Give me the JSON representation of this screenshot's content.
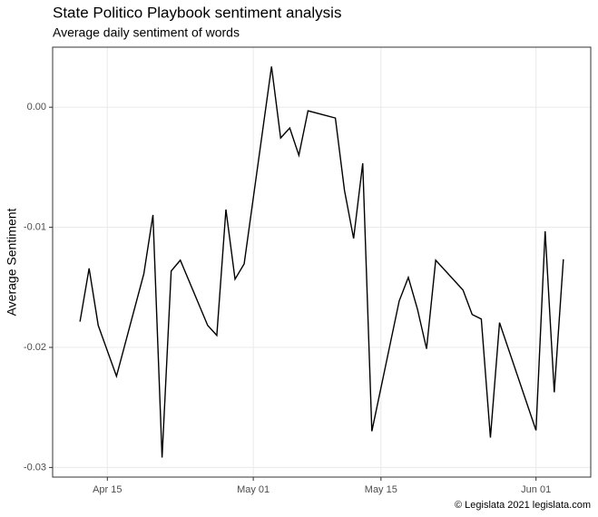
{
  "chart_data": {
    "type": "line",
    "title": "State Politico Playbook sentiment analysis",
    "subtitle": "Average daily sentiment of words",
    "y_label": "Average Sentiment",
    "caption": "© Legislata 2021 legislata.com",
    "x": [
      "Apr 12",
      "Apr 13",
      "Apr 14",
      "Apr 16",
      "Apr 19",
      "Apr 20",
      "Apr 21",
      "Apr 22",
      "Apr 23",
      "Apr 26",
      "Apr 27",
      "Apr 28",
      "Apr 29",
      "Apr 30",
      "May 03",
      "May 04",
      "May 05",
      "May 06",
      "May 07",
      "May 10",
      "May 11",
      "May 12",
      "May 13",
      "May 14",
      "May 17",
      "May 18",
      "May 19",
      "May 20",
      "May 21",
      "May 24",
      "May 25",
      "May 26",
      "May 27",
      "May 28",
      "Jun 01",
      "Jun 02",
      "Jun 03",
      "Jun 04"
    ],
    "series": [
      {
        "name": "Average Sentiment",
        "color": "#000000",
        "values": [
          -0.01786,
          -0.01342,
          -0.01817,
          -0.0224,
          -0.01387,
          -0.00897,
          -0.02917,
          -0.01364,
          -0.01274,
          -0.01817,
          -0.019,
          -0.00852,
          -0.01432,
          -0.01304,
          0.00339,
          -0.00256,
          -0.00173,
          -0.004,
          -0.0003,
          -0.0009,
          -0.00693,
          -0.01093,
          -0.00467,
          -0.02698,
          -0.01613,
          -0.01417,
          -0.01681,
          -0.02012,
          -0.01274,
          -0.01523,
          -0.01726,
          -0.01764,
          -0.02751,
          -0.01794,
          -0.02691,
          -0.01033,
          -0.02374,
          -0.01266
        ]
      }
    ],
    "xlim": [
      "Apr 09",
      "Jun 07"
    ],
    "xticks": [
      "Apr 15",
      "May 01",
      "May 15",
      "Jun 01"
    ],
    "ylim": [
      -0.0308,
      0.005
    ],
    "yticks": [
      {
        "value": -0.03,
        "label": "-0.03"
      },
      {
        "value": -0.02,
        "label": "-0.02"
      },
      {
        "value": -0.01,
        "label": "-0.01"
      },
      {
        "value": 0,
        "label": "0.00"
      }
    ],
    "grid": true
  }
}
